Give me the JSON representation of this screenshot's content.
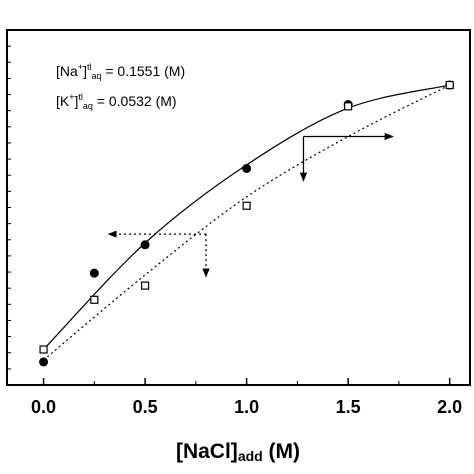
{
  "chart_data": {
    "type": "scatter",
    "xlabel": {
      "main": "[NaCl]",
      "sub": "add",
      "unit": " (M)"
    },
    "ylabel": "",
    "xlim": [
      -0.18,
      2.1
    ],
    "ylim": [
      0,
      1
    ],
    "x_ticks": [
      0.0,
      0.5,
      1.0,
      1.5,
      2.0
    ],
    "x_tick_labels": [
      "0.0",
      "0.5",
      "1.0",
      "1.5",
      "2.0"
    ],
    "y_minor_tick_count": 22,
    "series": [
      {
        "marker": "filled-circle",
        "fit_line": "solid",
        "x": [
          0.0,
          0.25,
          0.5,
          1.0,
          1.5,
          2.0
        ],
        "y": [
          0.065,
          0.315,
          0.395,
          0.61,
          0.79,
          0.845
        ],
        "fit": {
          "x": [
            0.0,
            0.5,
            1.0,
            1.5,
            2.0
          ],
          "y": [
            0.1,
            0.4,
            0.62,
            0.78,
            0.845
          ]
        }
      },
      {
        "marker": "open-square",
        "fit_line": "dotted",
        "x": [
          0.0,
          0.25,
          0.5,
          1.0,
          1.5,
          2.0
        ],
        "y": [
          0.1,
          0.24,
          0.28,
          0.505,
          0.785,
          0.845
        ],
        "fit": {
          "x": [
            0.0,
            0.5,
            1.0,
            1.5,
            2.0
          ],
          "y": [
            0.07,
            0.31,
            0.53,
            0.7,
            0.845
          ]
        }
      }
    ],
    "annotations": [
      {
        "main": "[Na",
        "sup": "+",
        "main2": "]",
        "supsub": "tl",
        "sub": "aq",
        "value": " = 0.1551 (M)"
      },
      {
        "main": "[K",
        "sup": "+",
        "main2": "]",
        "supsub": "tl",
        "sub": "aq",
        "value": " = 0.0532 (M)"
      }
    ],
    "axis_arrows": [
      {
        "line": "solid",
        "direction": "right",
        "from": [
          1.28,
          0.7
        ],
        "to": [
          1.72,
          0.7
        ],
        "drop": "down",
        "drop_to": 0.575
      },
      {
        "line": "dotted",
        "direction": "left",
        "from": [
          0.8,
          0.425
        ],
        "to": [
          0.32,
          0.425
        ],
        "drop": "down",
        "drop_to": 0.305
      }
    ],
    "grid": false,
    "legend": "none"
  }
}
